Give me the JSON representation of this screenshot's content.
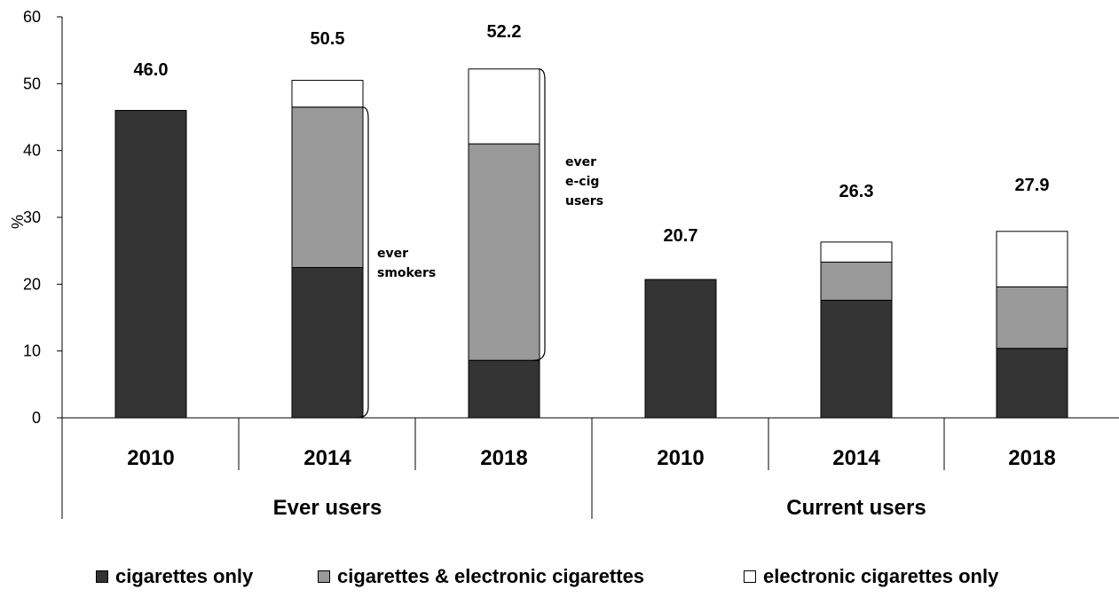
{
  "chart_data": {
    "type": "bar",
    "stacked": true,
    "ylabel": "%",
    "ylim": [
      0,
      60
    ],
    "yticks": [
      "0",
      "10",
      "20",
      "30",
      "40",
      "50",
      "60"
    ],
    "groups": [
      {
        "label": "Ever users",
        "categories": [
          "2010",
          "2014",
          "2018"
        ]
      },
      {
        "label": "Current  users",
        "categories": [
          "2010",
          "2014",
          "2018"
        ]
      }
    ],
    "categories": [
      "2010",
      "2014",
      "2018",
      "2010",
      "2014",
      "2018"
    ],
    "series": [
      {
        "name": "cigarettes only",
        "color": "#333333",
        "values": [
          46.0,
          22.5,
          8.6,
          20.7,
          17.6,
          10.4
        ]
      },
      {
        "name": "cigarettes & electronic cigarettes",
        "color": "#999999",
        "values": [
          0,
          24.0,
          32.4,
          0,
          5.7,
          9.2
        ]
      },
      {
        "name": "electronic cigarettes only",
        "color": "#ffffff",
        "values": [
          0,
          4.0,
          11.2,
          0,
          3.0,
          8.3
        ]
      }
    ],
    "totals": [
      "46.0",
      "50.5",
      "52.2",
      "20.7",
      "26.3",
      "27.9"
    ],
    "annotations": [
      {
        "lines": [
          "ever",
          "smokers"
        ]
      },
      {
        "lines": [
          "ever",
          "e-cig",
          "users"
        ]
      }
    ],
    "grid": false,
    "legend_position": "bottom"
  }
}
